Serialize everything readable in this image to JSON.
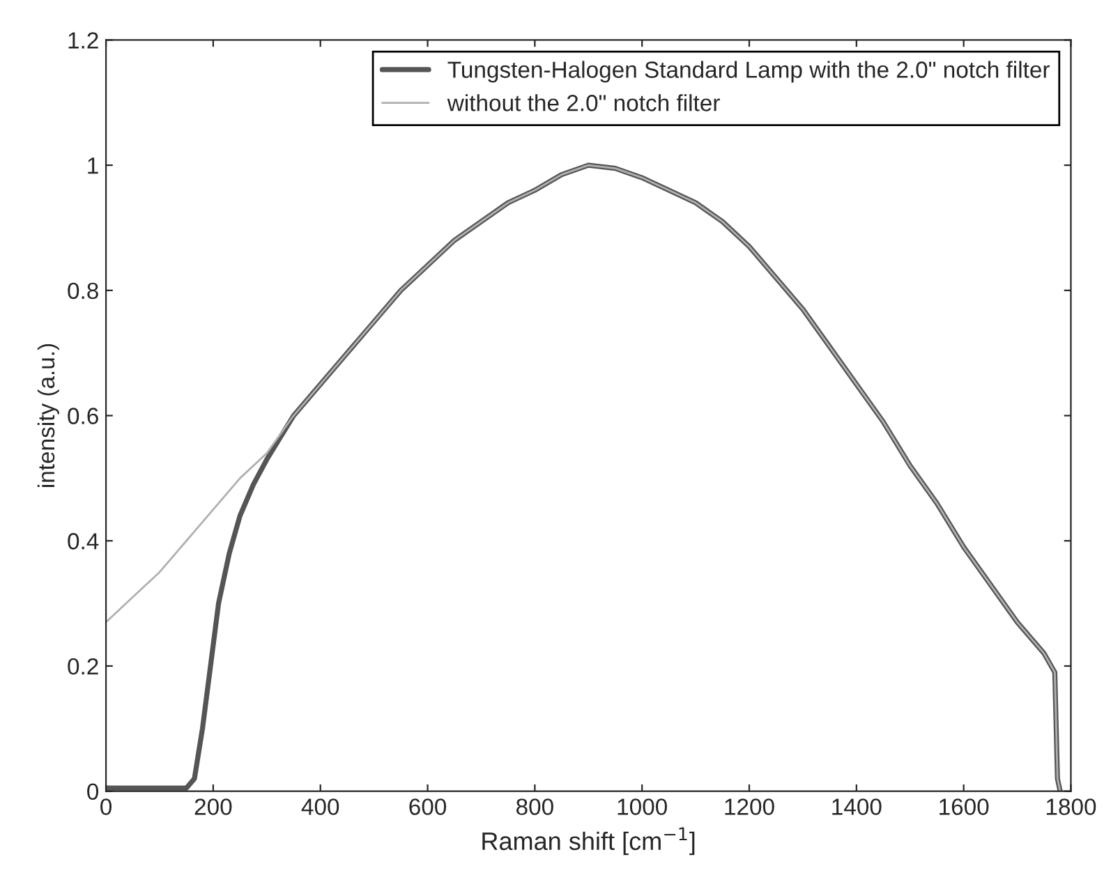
{
  "chart_data": {
    "type": "line",
    "xlabel": "Raman shift [cm$^{−1}$]",
    "ylabel": "intensity (a.u.)",
    "xlim": [
      0,
      1800
    ],
    "ylim": [
      0,
      1.2
    ],
    "xticks": [
      0,
      200,
      400,
      600,
      800,
      1000,
      1200,
      1400,
      1600,
      1800
    ],
    "yticks": [
      0,
      0.2,
      0.4,
      0.6,
      0.8,
      1,
      1.2
    ],
    "grid": false,
    "legend": "top right",
    "line_style": "solid",
    "series": [
      {
        "name": "Tungsten-Halogen Standard Lamp with the 2.0\" notch filter",
        "color": "#555555",
        "x": [
          0,
          50,
          100,
          150,
          165,
          180,
          195,
          210,
          230,
          250,
          275,
          300,
          350,
          400,
          450,
          500,
          550,
          600,
          650,
          700,
          750,
          800,
          850,
          900,
          950,
          1000,
          1050,
          1100,
          1150,
          1200,
          1250,
          1300,
          1350,
          1400,
          1450,
          1500,
          1550,
          1600,
          1650,
          1700,
          1750,
          1770,
          1775,
          1780
        ],
        "values": [
          0.005,
          0.005,
          0.005,
          0.005,
          0.02,
          0.1,
          0.2,
          0.3,
          0.38,
          0.44,
          0.49,
          0.53,
          0.6,
          0.65,
          0.7,
          0.75,
          0.8,
          0.84,
          0.88,
          0.91,
          0.94,
          0.96,
          0.985,
          1.0,
          0.995,
          0.98,
          0.96,
          0.94,
          0.91,
          0.87,
          0.82,
          0.77,
          0.71,
          0.65,
          0.59,
          0.52,
          0.46,
          0.39,
          0.33,
          0.27,
          0.22,
          0.19,
          0.02,
          0.0
        ]
      },
      {
        "name": "without the 2.0\" notch filter",
        "color": "#b0b0b0",
        "x": [
          0,
          50,
          100,
          150,
          200,
          250,
          300,
          350,
          400,
          450,
          500,
          550,
          600,
          650,
          700,
          750,
          800,
          850,
          900,
          950,
          1000,
          1050,
          1100,
          1150,
          1200,
          1250,
          1300,
          1350,
          1400,
          1450,
          1500,
          1550,
          1600,
          1650,
          1700,
          1750,
          1770,
          1775,
          1780
        ],
        "values": [
          0.27,
          0.31,
          0.35,
          0.4,
          0.45,
          0.5,
          0.54,
          0.6,
          0.65,
          0.7,
          0.75,
          0.8,
          0.84,
          0.88,
          0.91,
          0.94,
          0.96,
          0.985,
          1.0,
          0.995,
          0.98,
          0.96,
          0.94,
          0.91,
          0.87,
          0.82,
          0.77,
          0.71,
          0.65,
          0.59,
          0.52,
          0.46,
          0.39,
          0.33,
          0.27,
          0.22,
          0.19,
          0.02,
          0.0
        ]
      }
    ]
  }
}
